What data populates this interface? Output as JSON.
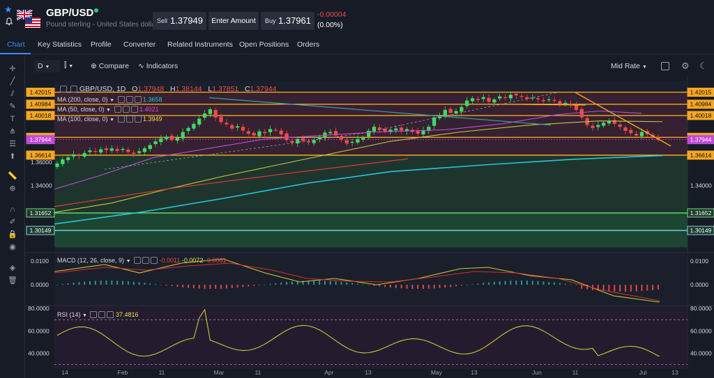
{
  "header": {
    "symbol": "GBP/USD",
    "description": "Pound sterling - United States dollar",
    "sell_label": "Sell",
    "sell_price": "1.37949",
    "enter_amount_label": "Enter Amount",
    "buy_label": "Buy",
    "buy_price": "1.37961",
    "change": "-0.00004",
    "change_pct": "(0.00%)"
  },
  "tabs": [
    "Chart",
    "Key Statistics",
    "Profile",
    "Converter",
    "Related Instruments",
    "Open Positions",
    "Orders"
  ],
  "toolbar": {
    "interval": "D",
    "compare_label": "Compare",
    "indicators_label": "Indicators",
    "price_source": "Mid Rate"
  },
  "legends": {
    "ohlc_name": "GBP/USD, 1D",
    "o_label": "O",
    "o_value": "1.37948",
    "h_label": "H",
    "h_value": "1.38144",
    "l_label": "L",
    "l_value": "1.37851",
    "c_label": "C",
    "c_value": "1.37944",
    "ma200_name": "MA (200, close, 0)",
    "ma200_value": "1.3658",
    "ma50_name": "MA (50, close, 0)",
    "ma50_value": "1.4021",
    "ma100_name": "MA (100, close, 0)",
    "ma100_value": "1.3949",
    "macd_name": "MACD (12, 26, close, 9)",
    "macd_hist": "-0.0011",
    "macd_line": "-0.0072",
    "macd_signal": "-0.0061",
    "rsi_name": "RSI (14)",
    "rsi_value": "37.4816"
  },
  "colors": {
    "bg": "#171b26",
    "up": "#26a69a",
    "up_bright": "#3ddc62",
    "down": "#ef4b4b",
    "orange": "#f5a623",
    "ma200": "#26c6da",
    "ma50": "#c04bd8",
    "ma100": "#c8c83c",
    "macd": "#c8c83c",
    "signal": "#d32f2f"
  },
  "chart_data": {
    "type": "candlestick",
    "symbol": "GBP/USD",
    "timeframe": "1D",
    "y_ticks_left": [
      "1.36000",
      "1.34000"
    ],
    "y_ticks_right": [
      "1.34000"
    ],
    "levels": [
      {
        "value": 1.42015,
        "label": "1.42015",
        "color": "#f5a623"
      },
      {
        "value": 1.40984,
        "label": "1.40984",
        "color": "#f5a623"
      },
      {
        "value": 1.40018,
        "label": "1.40018",
        "color": "#f5a623"
      },
      {
        "value": 1.38141,
        "label": "1.38141",
        "color": "#f5a623"
      },
      {
        "value": 1.37944,
        "label": "1.37944",
        "color": "#c04bd8"
      },
      {
        "value": 1.36614,
        "label": "1.36614",
        "color": "#f5a623"
      },
      {
        "value": 1.31652,
        "label": "1.31652",
        "color": "#6ee07a"
      },
      {
        "value": 1.30149,
        "label": "1.30149",
        "color": "#7fd6e0"
      }
    ],
    "x_labels": [
      "14",
      "Feb",
      "11",
      "Mar",
      "11",
      "Apr",
      "13",
      "May",
      "13",
      "Jun",
      "11",
      "Jul",
      "13"
    ],
    "closes": [
      1.359,
      1.3625,
      1.3642,
      1.3668,
      1.3655,
      1.368,
      1.3702,
      1.369,
      1.3712,
      1.3705,
      1.372,
      1.3698,
      1.3715,
      1.3688,
      1.3672,
      1.3695,
      1.372,
      1.3748,
      1.378,
      1.3805,
      1.382,
      1.3792,
      1.381,
      1.386,
      1.3895,
      1.393,
      1.3975,
      1.402,
      1.4055,
      1.3985,
      1.3945,
      1.3925,
      1.389,
      1.391,
      1.3872,
      1.3845,
      1.383,
      1.3866,
      1.385,
      1.3885,
      1.3878,
      1.384,
      1.379,
      1.3768,
      1.38,
      1.3785,
      1.377,
      1.379,
      1.382,
      1.3855,
      1.386,
      1.383,
      1.3795,
      1.3762,
      1.3775,
      1.38,
      1.3812,
      1.387,
      1.3905,
      1.388,
      1.3865,
      1.388,
      1.389,
      1.3872,
      1.3885,
      1.386,
      1.3846,
      1.3875,
      1.3905,
      1.3985,
      1.4,
      1.405,
      1.4025,
      1.404,
      1.4075,
      1.413,
      1.415,
      1.4135,
      1.416,
      1.412,
      1.414,
      1.4165,
      1.4155,
      1.418,
      1.4175,
      1.4165,
      1.4145,
      1.4155,
      1.414,
      1.4125,
      1.414,
      1.413,
      1.41,
      1.411,
      1.4095,
      1.405,
      1.3985,
      1.392,
      1.3895,
      1.392,
      1.394,
      1.3955,
      1.393,
      1.3905,
      1.387,
      1.385,
      1.383,
      1.386,
      1.3842,
      1.382,
      1.3794
    ],
    "ma200": [
      1.334,
      1.366
    ],
    "ma50_value": 1.4021,
    "ma100_value": 1.3949,
    "macd_ticks": [
      "0.0100",
      "0.0000"
    ],
    "rsi_ticks": [
      "80.0000",
      "60.0000",
      "40.0000"
    ],
    "rsi_last": 37.4816
  }
}
